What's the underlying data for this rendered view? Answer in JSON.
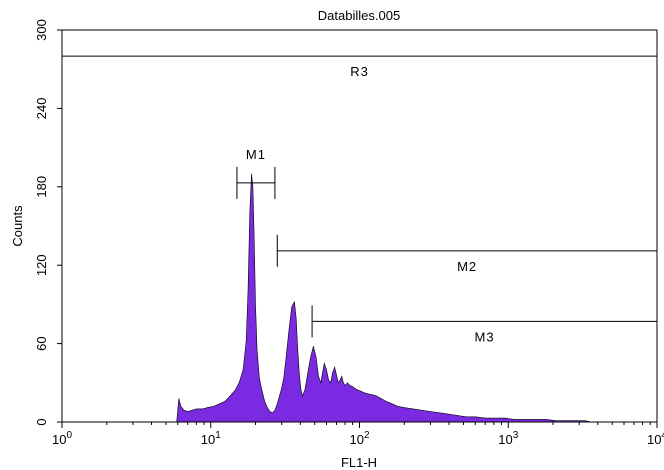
{
  "chart_data": {
    "type": "area",
    "title": "Databilles.005",
    "xlabel": "FL1-H",
    "ylabel": "Counts",
    "x_scale": "log",
    "xlim": [
      1,
      10000
    ],
    "ylim": [
      0,
      300
    ],
    "x_ticks": [
      {
        "value": 1,
        "base": "10",
        "exp": "0"
      },
      {
        "value": 10,
        "base": "10",
        "exp": "1"
      },
      {
        "value": 100,
        "base": "10",
        "exp": "2"
      },
      {
        "value": 1000,
        "base": "10",
        "exp": "3"
      },
      {
        "value": 10000,
        "base": "10",
        "exp": "4"
      }
    ],
    "y_ticks": [
      "0",
      "60",
      "120",
      "180",
      "240",
      "300"
    ],
    "fill_color": "#7a2be2",
    "grid": false,
    "series": [
      {
        "x": [
          5.9,
          6.1,
          6.3,
          6.6,
          7,
          7.5,
          8,
          8.8,
          9.5,
          10.5,
          11.5,
          12.5,
          13.5,
          14.5,
          15.5,
          16.5,
          17.3,
          17.8,
          18.3,
          18.8,
          19.2,
          19.6,
          20.0,
          20.5,
          21.2,
          22,
          23,
          24,
          25,
          26,
          27,
          28,
          29,
          30,
          31,
          32,
          33.5,
          35,
          36.5,
          37.5,
          38.5,
          39.5,
          40.5,
          41.5,
          43,
          45,
          47,
          49,
          51,
          53,
          55,
          56.5,
          58,
          60,
          62,
          64,
          66,
          68,
          70,
          72,
          74,
          76,
          78,
          80,
          83,
          86,
          90,
          95,
          100,
          110,
          120,
          130,
          140,
          150,
          165,
          180,
          200,
          230,
          260,
          300,
          350,
          400,
          460,
          520,
          600,
          700,
          800,
          950,
          1100,
          1300,
          1500,
          1800,
          2100,
          2500,
          3000,
          3300,
          3600
        ],
        "y": [
          0,
          18,
          12,
          9,
          8,
          9,
          10,
          10,
          11,
          12,
          14,
          16,
          20,
          24,
          30,
          40,
          62,
          100,
          160,
          190,
          180,
          140,
          90,
          55,
          34,
          25,
          16,
          11,
          8,
          7,
          9,
          14,
          20,
          26,
          34,
          48,
          70,
          88,
          92,
          80,
          55,
          35,
          24,
          20,
          25,
          38,
          50,
          58,
          50,
          35,
          30,
          38,
          45,
          40,
          32,
          30,
          38,
          42,
          36,
          30,
          32,
          35,
          30,
          28,
          30,
          28,
          27,
          25,
          24,
          22,
          21,
          20,
          18,
          16,
          14,
          12,
          11,
          10,
          9,
          8,
          7,
          6,
          5,
          4,
          4,
          3,
          3,
          3,
          2,
          2,
          2,
          2,
          1,
          1,
          1,
          1,
          0
        ]
      }
    ],
    "markers": [
      {
        "name": "R3",
        "x1": 1,
        "x2": 10000,
        "y": 280
      },
      {
        "name": "M1",
        "x1": 15,
        "x2": 27,
        "y": 183
      },
      {
        "name": "M2",
        "x1": 28,
        "x2": 10000,
        "y": 131
      },
      {
        "name": "M3",
        "x1": 48,
        "x2": 10000,
        "y": 77
      }
    ]
  }
}
